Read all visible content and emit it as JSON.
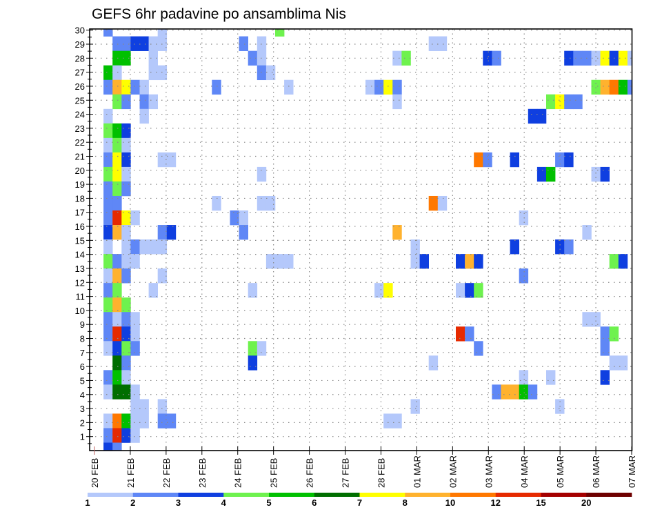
{
  "chart_data": {
    "type": "heatmap",
    "title": "GEFS 6hr padavine po ansamblima Nis",
    "xlabel": "",
    "ylabel": "",
    "x_time_step_hours": 6,
    "x_tick_labels": [
      "20 FEB",
      "21 FEB",
      "22 FEB",
      "23 FEB",
      "24 FEB",
      "25 FEB",
      "26 FEB",
      "27 FEB",
      "28 FEB",
      "01 MAR",
      "02 MAR",
      "03 MAR",
      "04 MAR",
      "05 MAR",
      "06 MAR",
      "07 MAR"
    ],
    "y_tick_labels": [
      "1",
      "2",
      "3",
      "4",
      "5",
      "6",
      "7",
      "8",
      "9",
      "10",
      "11",
      "12",
      "13",
      "14",
      "15",
      "16",
      "17",
      "18",
      "19",
      "20",
      "21",
      "22",
      "23",
      "24",
      "25",
      "26",
      "27",
      "28",
      "29",
      "30"
    ],
    "ylim": [
      0,
      30
    ],
    "grid": true,
    "colorbar": {
      "placement": "bottom",
      "levels": [
        "1",
        "2",
        "3",
        "4",
        "5",
        "6",
        "7",
        "8",
        "10",
        "12",
        "15",
        "20"
      ],
      "thresholds": [
        1,
        2,
        3,
        4,
        5,
        6,
        7,
        8,
        10,
        12,
        15,
        20
      ],
      "colors": [
        "#b4c8fb",
        "#5f87f6",
        "#0f3fe0",
        "#6ef24e",
        "#00c000",
        "#006e00",
        "#ffff00",
        "#ffb22e",
        "#ff7800",
        "#e62a00",
        "#a50000",
        "#6e0000"
      ]
    },
    "cells_format": "[time_step_index_from_20FEB_00Z, member, precip_mm_approx]",
    "cells": [
      [
        1,
        30,
        2.5
      ],
      [
        7,
        30,
        1.5
      ],
      [
        20,
        30,
        4.5
      ],
      [
        2,
        29,
        2.5
      ],
      [
        3,
        29,
        2.5
      ],
      [
        4,
        29,
        3.5
      ],
      [
        5,
        29,
        3.5
      ],
      [
        6,
        29,
        1.5
      ],
      [
        7,
        29,
        1.5
      ],
      [
        16,
        29,
        2.5
      ],
      [
        18,
        29,
        1.5
      ],
      [
        37,
        29,
        1.5
      ],
      [
        38,
        29,
        1.5
      ],
      [
        2,
        28,
        5.5
      ],
      [
        3,
        28,
        5.5
      ],
      [
        6,
        28,
        1.5
      ],
      [
        17,
        28,
        2.5
      ],
      [
        18,
        28,
        1.5
      ],
      [
        33,
        28,
        1.5
      ],
      [
        34,
        28,
        4.5
      ],
      [
        43,
        28,
        3.5
      ],
      [
        44,
        28,
        2.5
      ],
      [
        52,
        28,
        3.5
      ],
      [
        53,
        28,
        2.5
      ],
      [
        54,
        28,
        2.5
      ],
      [
        55,
        28,
        1.5
      ],
      [
        56,
        28,
        7.5
      ],
      [
        57,
        28,
        3.5
      ],
      [
        58,
        28,
        7.5
      ],
      [
        59,
        28,
        1.5
      ],
      [
        1,
        27,
        5.5
      ],
      [
        2,
        27,
        1.5
      ],
      [
        6,
        27,
        1.5
      ],
      [
        7,
        27,
        1.5
      ],
      [
        18,
        27,
        2.5
      ],
      [
        19,
        27,
        1.5
      ],
      [
        1,
        26,
        2.5
      ],
      [
        2,
        26,
        9
      ],
      [
        3,
        26,
        7.5
      ],
      [
        4,
        26,
        2.5
      ],
      [
        5,
        26,
        1.5
      ],
      [
        13,
        26,
        2.5
      ],
      [
        21,
        26,
        1.5
      ],
      [
        30,
        26,
        1.5
      ],
      [
        31,
        26,
        2.5
      ],
      [
        32,
        26,
        7.5
      ],
      [
        33,
        26,
        2.5
      ],
      [
        55,
        26,
        4.5
      ],
      [
        56,
        26,
        9
      ],
      [
        57,
        26,
        11
      ],
      [
        58,
        26,
        5.5
      ],
      [
        59,
        26,
        2.5
      ],
      [
        2,
        25,
        4.5
      ],
      [
        3,
        25,
        2.5
      ],
      [
        5,
        25,
        2.5
      ],
      [
        6,
        25,
        1.5
      ],
      [
        33,
        25,
        1.5
      ],
      [
        50,
        25,
        4.5
      ],
      [
        51,
        25,
        7.5
      ],
      [
        52,
        25,
        2.5
      ],
      [
        53,
        25,
        2.5
      ],
      [
        1,
        24,
        1.5
      ],
      [
        5,
        24,
        1.5
      ],
      [
        48,
        24,
        3.5
      ],
      [
        49,
        24,
        3.5
      ],
      [
        1,
        23,
        4.5
      ],
      [
        2,
        23,
        5.5
      ],
      [
        3,
        23,
        3.5
      ],
      [
        1,
        22,
        1.5
      ],
      [
        2,
        22,
        4.5
      ],
      [
        3,
        22,
        1.5
      ],
      [
        1,
        21,
        2.5
      ],
      [
        2,
        21,
        7.5
      ],
      [
        3,
        21,
        3.5
      ],
      [
        7,
        21,
        1.5
      ],
      [
        8,
        21,
        1.5
      ],
      [
        42,
        21,
        11
      ],
      [
        43,
        21,
        2.5
      ],
      [
        46,
        21,
        3.5
      ],
      [
        51,
        21,
        2.5
      ],
      [
        52,
        21,
        3.5
      ],
      [
        1,
        20,
        4.5
      ],
      [
        2,
        20,
        7.5
      ],
      [
        3,
        20,
        1.5
      ],
      [
        18,
        20,
        1.5
      ],
      [
        49,
        20,
        3.5
      ],
      [
        50,
        20,
        5.5
      ],
      [
        55,
        20,
        1.5
      ],
      [
        56,
        20,
        3.5
      ],
      [
        1,
        19,
        2.5
      ],
      [
        2,
        19,
        4.5
      ],
      [
        3,
        19,
        2.5
      ],
      [
        1,
        18,
        2.5
      ],
      [
        2,
        18,
        2.5
      ],
      [
        13,
        18,
        1.5
      ],
      [
        18,
        18,
        1.5
      ],
      [
        19,
        18,
        1.5
      ],
      [
        37,
        18,
        11
      ],
      [
        38,
        18,
        1.5
      ],
      [
        1,
        17,
        2.5
      ],
      [
        2,
        17,
        13.5
      ],
      [
        3,
        17,
        7.5
      ],
      [
        4,
        17,
        1.5
      ],
      [
        15,
        17,
        2.5
      ],
      [
        16,
        17,
        1.5
      ],
      [
        47,
        17,
        1.5
      ],
      [
        1,
        16,
        3.5
      ],
      [
        2,
        16,
        9
      ],
      [
        3,
        16,
        1.5
      ],
      [
        7,
        16,
        2.5
      ],
      [
        8,
        16,
        3.5
      ],
      [
        16,
        16,
        2.5
      ],
      [
        33,
        16,
        9
      ],
      [
        54,
        16,
        1.5
      ],
      [
        1,
        15,
        1.5
      ],
      [
        3,
        15,
        1.5
      ],
      [
        4,
        15,
        2.5
      ],
      [
        5,
        15,
        1.5
      ],
      [
        6,
        15,
        1.5
      ],
      [
        7,
        15,
        1.5
      ],
      [
        35,
        15,
        1.5
      ],
      [
        46,
        15,
        3.5
      ],
      [
        51,
        15,
        3.5
      ],
      [
        52,
        15,
        2.5
      ],
      [
        1,
        14,
        4.5
      ],
      [
        2,
        14,
        2.5
      ],
      [
        3,
        14,
        1.5
      ],
      [
        4,
        14,
        1.5
      ],
      [
        19,
        14,
        1.5
      ],
      [
        20,
        14,
        1.5
      ],
      [
        21,
        14,
        1.5
      ],
      [
        35,
        14,
        1.5
      ],
      [
        36,
        14,
        3.5
      ],
      [
        40,
        14,
        3.5
      ],
      [
        41,
        14,
        9
      ],
      [
        42,
        14,
        3.5
      ],
      [
        57,
        14,
        4.5
      ],
      [
        58,
        14,
        3.5
      ],
      [
        1,
        13,
        1.5
      ],
      [
        2,
        13,
        9
      ],
      [
        3,
        13,
        2.5
      ],
      [
        7,
        13,
        1.5
      ],
      [
        47,
        13,
        2.5
      ],
      [
        1,
        12,
        2.5
      ],
      [
        2,
        12,
        4.5
      ],
      [
        6,
        12,
        1.5
      ],
      [
        17,
        12,
        1.5
      ],
      [
        31,
        12,
        1.5
      ],
      [
        32,
        12,
        7.5
      ],
      [
        40,
        12,
        1.5
      ],
      [
        41,
        12,
        3.5
      ],
      [
        42,
        12,
        4.5
      ],
      [
        1,
        11,
        4.5
      ],
      [
        2,
        11,
        9
      ],
      [
        3,
        11,
        4.5
      ],
      [
        1,
        10,
        2.5
      ],
      [
        2,
        10,
        1.5
      ],
      [
        3,
        10,
        2.5
      ],
      [
        4,
        10,
        1.5
      ],
      [
        54,
        10,
        1.5
      ],
      [
        55,
        10,
        1.5
      ],
      [
        1,
        9,
        2.5
      ],
      [
        2,
        9,
        13.5
      ],
      [
        3,
        9,
        3.5
      ],
      [
        4,
        9,
        1.5
      ],
      [
        40,
        9,
        13.5
      ],
      [
        41,
        9,
        2.5
      ],
      [
        56,
        9,
        2.5
      ],
      [
        57,
        9,
        4.5
      ],
      [
        1,
        8,
        1.5
      ],
      [
        2,
        8,
        3.5
      ],
      [
        3,
        8,
        4.5
      ],
      [
        4,
        8,
        2.5
      ],
      [
        17,
        8,
        4.5
      ],
      [
        18,
        8,
        1.5
      ],
      [
        42,
        8,
        2.5
      ],
      [
        56,
        8,
        2.5
      ],
      [
        2,
        7,
        6.5
      ],
      [
        3,
        7,
        2.5
      ],
      [
        17,
        7,
        3.5
      ],
      [
        37,
        7,
        1.5
      ],
      [
        57,
        7,
        1.5
      ],
      [
        58,
        7,
        1.5
      ],
      [
        1,
        6,
        2.5
      ],
      [
        2,
        6,
        5.5
      ],
      [
        3,
        6,
        1.5
      ],
      [
        47,
        6,
        1.5
      ],
      [
        50,
        6,
        1.5
      ],
      [
        56,
        6,
        3.5
      ],
      [
        1,
        5,
        1.5
      ],
      [
        2,
        5,
        6.5
      ],
      [
        3,
        5,
        6.5
      ],
      [
        4,
        5,
        1.5
      ],
      [
        44,
        5,
        2.5
      ],
      [
        45,
        5,
        9
      ],
      [
        46,
        5,
        9
      ],
      [
        47,
        5,
        5.5
      ],
      [
        48,
        5,
        2.5
      ],
      [
        4,
        4,
        1.5
      ],
      [
        5,
        4,
        1.5
      ],
      [
        7,
        4,
        1.5
      ],
      [
        35,
        4,
        1.5
      ],
      [
        51,
        4,
        1.5
      ],
      [
        1,
        3,
        1.5
      ],
      [
        2,
        3,
        11
      ],
      [
        3,
        3,
        5.5
      ],
      [
        4,
        3,
        1.5
      ],
      [
        5,
        3,
        1.5
      ],
      [
        7,
        3,
        2.5
      ],
      [
        8,
        3,
        2.5
      ],
      [
        32,
        3,
        1.5
      ],
      [
        33,
        3,
        1.5
      ],
      [
        1,
        2,
        2.5
      ],
      [
        2,
        2,
        13.5
      ],
      [
        3,
        2,
        3.5
      ],
      [
        4,
        2,
        1.5
      ],
      [
        1,
        1,
        3.5
      ],
      [
        2,
        1,
        2.5
      ]
    ]
  }
}
